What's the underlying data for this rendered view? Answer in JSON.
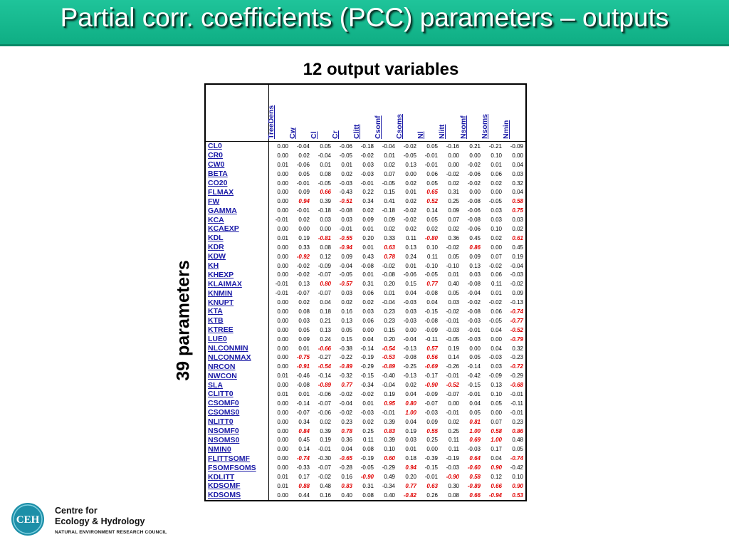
{
  "slide": {
    "title": "Partial corr. coefficients (PCC) parameters – outputs",
    "subtitle": "12 output variables",
    "vertical_label": "39 parameters"
  },
  "colors": {
    "title_bar": "#13b98d",
    "header_text": "#1a1aa6",
    "highlight": "#e00000"
  },
  "table": {
    "columns": [
      "TreeDens",
      "Cw",
      "Cl",
      "Cr",
      "Clitt",
      "Csomf",
      "Csoms",
      "Nl",
      "Nlitt",
      "Nsomf",
      "Nsoms",
      "Nmin"
    ],
    "rows": [
      {
        "name": "CL0",
        "values": [
          "0.00",
          "-0.04",
          "0.05",
          "-0.06",
          "-0.18",
          "-0.04",
          "-0.02",
          "0.05",
          "-0.16",
          "0.21",
          "-0.21",
          "-0.09"
        ]
      },
      {
        "name": "CR0",
        "values": [
          "0.00",
          "0.02",
          "-0.04",
          "-0.05",
          "-0.02",
          "0.01",
          "-0.05",
          "-0.01",
          "0.00",
          "0.00",
          "0.10",
          "0.00"
        ]
      },
      {
        "name": "CW0",
        "values": [
          "0.01",
          "-0.06",
          "0.01",
          "0.01",
          "0.03",
          "0.02",
          "0.13",
          "-0.01",
          "0.00",
          "-0.02",
          "0.01",
          "0.04"
        ]
      },
      {
        "name": "BETA",
        "values": [
          "0.00",
          "0.05",
          "0.08",
          "0.02",
          "-0.03",
          "0.07",
          "0.00",
          "0.06",
          "-0.02",
          "-0.06",
          "0.06",
          "0.03"
        ]
      },
      {
        "name": "CO20",
        "values": [
          "0.00",
          "-0.01",
          "-0.05",
          "-0.03",
          "-0.01",
          "-0.05",
          "0.02",
          "0.05",
          "0.02",
          "-0.02",
          "0.02",
          "0.32"
        ]
      },
      {
        "name": "FLMAX",
        "values": [
          "0.00",
          "0.09",
          "0.66",
          "-0.43",
          "0.22",
          "0.15",
          "0.01",
          "0.65",
          "0.31",
          "0.00",
          "0.00",
          "0.04"
        ]
      },
      {
        "name": "FW",
        "values": [
          "0.00",
          "0.94",
          "0.39",
          "-0.51",
          "0.34",
          "0.41",
          "0.02",
          "0.52",
          "0.25",
          "-0.08",
          "-0.05",
          "0.58"
        ]
      },
      {
        "name": "GAMMA",
        "values": [
          "0.00",
          "-0.01",
          "-0.18",
          "-0.08",
          "0.02",
          "-0.18",
          "-0.02",
          "0.14",
          "0.09",
          "-0.06",
          "0.03",
          "0.75"
        ]
      },
      {
        "name": "KCA",
        "values": [
          "-0.01",
          "0.02",
          "0.03",
          "0.03",
          "0.09",
          "0.09",
          "-0.02",
          "0.05",
          "0.07",
          "-0.08",
          "0.03",
          "0.03"
        ]
      },
      {
        "name": "KCAEXP",
        "values": [
          "0.00",
          "0.00",
          "0.00",
          "-0.01",
          "0.01",
          "0.02",
          "0.02",
          "0.02",
          "0.02",
          "-0.06",
          "0.10",
          "0.02"
        ]
      },
      {
        "name": "KDL",
        "values": [
          "0.01",
          "0.19",
          "-0.81",
          "-0.55",
          "0.20",
          "0.33",
          "0.11",
          "-0.80",
          "0.36",
          "0.45",
          "0.02",
          "0.61"
        ]
      },
      {
        "name": "KDR",
        "values": [
          "0.00",
          "0.33",
          "0.08",
          "-0.94",
          "0.01",
          "0.63",
          "0.13",
          "0.10",
          "-0.02",
          "0.86",
          "0.00",
          "0.45"
        ]
      },
      {
        "name": "KDW",
        "values": [
          "0.00",
          "-0.92",
          "0.12",
          "0.09",
          "0.43",
          "0.78",
          "0.24",
          "0.11",
          "0.05",
          "0.09",
          "0.07",
          "0.19"
        ]
      },
      {
        "name": "KH",
        "values": [
          "0.00",
          "-0.02",
          "-0.09",
          "-0.04",
          "-0.08",
          "-0.02",
          "0.01",
          "-0.10",
          "-0.10",
          "0.13",
          "-0.02",
          "-0.04"
        ]
      },
      {
        "name": "KHEXP",
        "values": [
          "0.00",
          "-0.02",
          "-0.07",
          "-0.05",
          "0.01",
          "-0.08",
          "-0.06",
          "-0.05",
          "0.01",
          "0.03",
          "0.06",
          "-0.03"
        ]
      },
      {
        "name": "KLAIMAX",
        "values": [
          "-0.01",
          "0.13",
          "0.80",
          "-0.57",
          "0.31",
          "0.20",
          "0.15",
          "0.77",
          "0.40",
          "-0.08",
          "0.11",
          "-0.02"
        ]
      },
      {
        "name": "KNMIN",
        "values": [
          "-0.01",
          "-0.07",
          "-0.07",
          "0.03",
          "0.06",
          "0.01",
          "0.04",
          "-0.08",
          "0.05",
          "-0.04",
          "0.01",
          "0.09"
        ]
      },
      {
        "name": "KNUPT",
        "values": [
          "0.00",
          "0.02",
          "0.04",
          "0.02",
          "0.02",
          "-0.04",
          "-0.03",
          "0.04",
          "0.03",
          "-0.02",
          "-0.02",
          "-0.13"
        ]
      },
      {
        "name": "KTA",
        "values": [
          "0.00",
          "0.08",
          "0.18",
          "0.16",
          "0.03",
          "0.23",
          "0.03",
          "-0.15",
          "-0.02",
          "-0.08",
          "0.06",
          "-0.74"
        ]
      },
      {
        "name": "KTB",
        "values": [
          "0.00",
          "0.03",
          "0.21",
          "0.13",
          "0.06",
          "0.23",
          "-0.03",
          "-0.08",
          "-0.01",
          "-0.03",
          "-0.05",
          "-0.77"
        ]
      },
      {
        "name": "KTREE",
        "values": [
          "0.00",
          "0.05",
          "0.13",
          "0.05",
          "0.00",
          "0.15",
          "0.00",
          "-0.09",
          "-0.03",
          "-0.01",
          "0.04",
          "-0.52"
        ]
      },
      {
        "name": "LUE0",
        "values": [
          "0.00",
          "0.09",
          "0.24",
          "0.15",
          "0.04",
          "0.20",
          "-0.04",
          "-0.11",
          "-0.05",
          "-0.03",
          "0.00",
          "-0.79"
        ]
      },
      {
        "name": "NLCONMIN",
        "values": [
          "0.00",
          "0.01",
          "-0.66",
          "-0.38",
          "-0.14",
          "-0.54",
          "-0.13",
          "0.57",
          "0.19",
          "0.00",
          "0.04",
          "0.32"
        ]
      },
      {
        "name": "NLCONMAX",
        "values": [
          "0.00",
          "-0.75",
          "-0.27",
          "-0.22",
          "-0.19",
          "-0.53",
          "-0.08",
          "0.56",
          "0.14",
          "0.05",
          "-0.03",
          "-0.23"
        ]
      },
      {
        "name": "NRCON",
        "values": [
          "0.00",
          "-0.91",
          "-0.54",
          "-0.89",
          "-0.29",
          "-0.89",
          "-0.25",
          "-0.69",
          "-0.26",
          "-0.14",
          "0.03",
          "-0.72"
        ]
      },
      {
        "name": "NWCON",
        "values": [
          "0.01",
          "-0.46",
          "-0.14",
          "-0.32",
          "-0.15",
          "-0.40",
          "-0.13",
          "-0.17",
          "-0.01",
          "-0.42",
          "-0.09",
          "-0.29"
        ]
      },
      {
        "name": "SLA",
        "values": [
          "0.00",
          "-0.08",
          "-0.89",
          "0.77",
          "-0.34",
          "-0.04",
          "0.02",
          "-0.90",
          "-0.52",
          "-0.15",
          "0.13",
          "-0.68"
        ]
      },
      {
        "name": "CLITT0",
        "values": [
          "0.01",
          "0.01",
          "-0.06",
          "-0.02",
          "-0.02",
          "0.19",
          "0.04",
          "-0.09",
          "-0.07",
          "-0.01",
          "0.10",
          "-0.01"
        ]
      },
      {
        "name": "CSOMF0",
        "values": [
          "0.00",
          "-0.14",
          "-0.07",
          "-0.04",
          "0.01",
          "0.95",
          "0.80",
          "-0.07",
          "0.00",
          "0.04",
          "0.05",
          "-0.11"
        ]
      },
      {
        "name": "CSOMS0",
        "values": [
          "0.00",
          "-0.07",
          "-0.06",
          "-0.02",
          "-0.03",
          "-0.01",
          "1.00",
          "-0.03",
          "-0.01",
          "0.05",
          "0.00",
          "-0.01"
        ]
      },
      {
        "name": "NLITT0",
        "values": [
          "0.00",
          "0.34",
          "0.02",
          "0.23",
          "0.02",
          "0.39",
          "0.04",
          "0.09",
          "0.02",
          "0.81",
          "0.07",
          "0.23"
        ]
      },
      {
        "name": "NSOMF0",
        "values": [
          "0.00",
          "0.84",
          "0.39",
          "0.78",
          "0.25",
          "0.83",
          "0.19",
          "0.55",
          "0.25",
          "1.00",
          "0.58",
          "0.86"
        ]
      },
      {
        "name": "NSOMS0",
        "values": [
          "0.00",
          "0.45",
          "0.19",
          "0.36",
          "0.11",
          "0.39",
          "0.03",
          "0.25",
          "0.11",
          "0.69",
          "1.00",
          "0.48"
        ]
      },
      {
        "name": "NMIN0",
        "values": [
          "0.00",
          "0.14",
          "-0.01",
          "0.04",
          "0.08",
          "0.10",
          "0.01",
          "0.00",
          "0.11",
          "-0.03",
          "0.17",
          "0.05"
        ]
      },
      {
        "name": "FLITTSOMF",
        "values": [
          "0.00",
          "-0.74",
          "-0.30",
          "-0.65",
          "-0.19",
          "0.60",
          "0.18",
          "-0.39",
          "-0.19",
          "0.64",
          "0.04",
          "-0.74"
        ]
      },
      {
        "name": "FSOMFSOMS",
        "values": [
          "0.00",
          "-0.33",
          "-0.07",
          "-0.28",
          "-0.05",
          "-0.29",
          "0.94",
          "-0.15",
          "-0.03",
          "-0.60",
          "0.90",
          "-0.42"
        ]
      },
      {
        "name": "KDLITT",
        "values": [
          "0.01",
          "0.17",
          "-0.02",
          "0.16",
          "-0.90",
          "0.49",
          "0.20",
          "-0.01",
          "-0.90",
          "0.58",
          "0.12",
          "0.10"
        ]
      },
      {
        "name": "KDSOMF",
        "values": [
          "0.01",
          "0.88",
          "0.48",
          "0.83",
          "0.31",
          "-0.34",
          "0.77",
          "0.63",
          "0.30",
          "-0.89",
          "0.66",
          "0.90"
        ]
      },
      {
        "name": "KDSOMS",
        "values": [
          "0.00",
          "0.44",
          "0.16",
          "0.40",
          "0.08",
          "0.40",
          "-0.82",
          "0.26",
          "0.08",
          "0.66",
          "-0.94",
          "0.53"
        ]
      }
    ]
  },
  "logo": {
    "emblem_text": "CEH",
    "line1": "Centre for",
    "line2": "Ecology & Hydrology",
    "line3": "NATURAL ENVIRONMENT RESEARCH COUNCIL"
  }
}
